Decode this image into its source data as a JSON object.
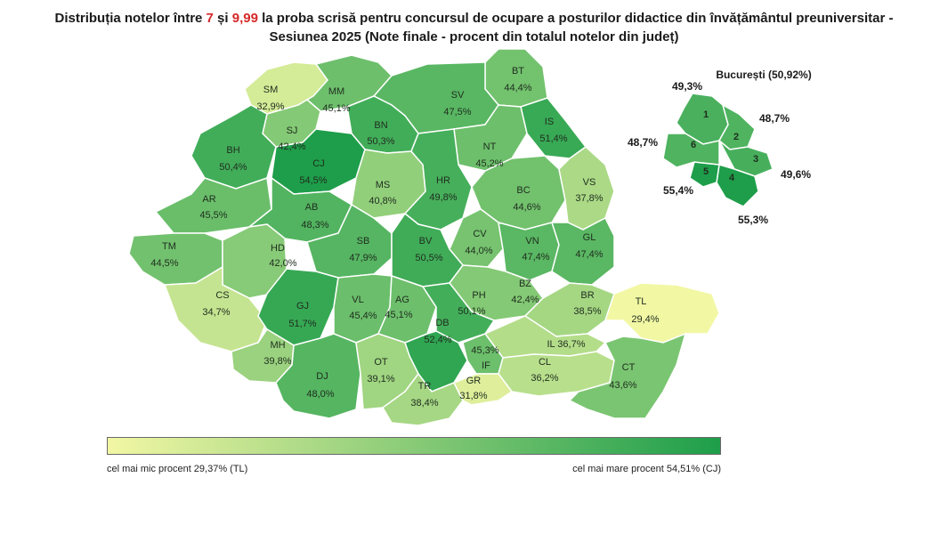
{
  "title": {
    "part1": "Distribuția notelor între ",
    "n1": "7",
    "part2": " și ",
    "n2": "9,99",
    "part3": " la proba scrisă pentru concursul de ocupare a posturilor didactice din învățământul preuniversitar -",
    "line2": "Sesiunea 2025 (Note finale - procent din totalul notelor din județ)"
  },
  "colors": {
    "low": "#f2f7a4",
    "high": "#1e9e4a",
    "border": "#ffffff",
    "title_accent": "#d62828"
  },
  "counties": [
    {
      "code": "SM",
      "value": "32,9%",
      "pct": 32.9
    },
    {
      "code": "MM",
      "value": "45,1%",
      "pct": 45.1
    },
    {
      "code": "BT",
      "value": "44,4%",
      "pct": 44.4
    },
    {
      "code": "SV",
      "value": "47,5%",
      "pct": 47.5
    },
    {
      "code": "IS",
      "value": "51,4%",
      "pct": 51.4
    },
    {
      "code": "BN",
      "value": "50,3%",
      "pct": 50.3
    },
    {
      "code": "SJ",
      "value": "42,4%",
      "pct": 42.4
    },
    {
      "code": "BH",
      "value": "50,4%",
      "pct": 50.4
    },
    {
      "code": "CJ",
      "value": "54,5%",
      "pct": 54.5
    },
    {
      "code": "NT",
      "value": "45,2%",
      "pct": 45.2
    },
    {
      "code": "MS",
      "value": "40,8%",
      "pct": 40.8
    },
    {
      "code": "HR",
      "value": "49,8%",
      "pct": 49.8
    },
    {
      "code": "BC",
      "value": "44,6%",
      "pct": 44.6
    },
    {
      "code": "VS",
      "value": "37,8%",
      "pct": 37.8
    },
    {
      "code": "AR",
      "value": "45,5%",
      "pct": 45.5
    },
    {
      "code": "AB",
      "value": "48,3%",
      "pct": 48.3
    },
    {
      "code": "CV",
      "value": "44,0%",
      "pct": 44.0
    },
    {
      "code": "TM",
      "value": "44,5%",
      "pct": 44.5
    },
    {
      "code": "HD",
      "value": "42,0%",
      "pct": 42.0
    },
    {
      "code": "SB",
      "value": "47,9%",
      "pct": 47.9
    },
    {
      "code": "BV",
      "value": "50,5%",
      "pct": 50.5
    },
    {
      "code": "VN",
      "value": "47,4%",
      "pct": 47.4
    },
    {
      "code": "GL",
      "value": "47,4%",
      "pct": 47.4
    },
    {
      "code": "BZ",
      "value": "42,4%",
      "pct": 42.4
    },
    {
      "code": "CS",
      "value": "34,7%",
      "pct": 34.7
    },
    {
      "code": "GJ",
      "value": "51,7%",
      "pct": 51.7
    },
    {
      "code": "VL",
      "value": "45,4%",
      "pct": 45.4
    },
    {
      "code": "AG",
      "value": "45,1%",
      "pct": 45.1
    },
    {
      "code": "PH",
      "value": "50,1%",
      "pct": 50.1
    },
    {
      "code": "BR",
      "value": "38,5%",
      "pct": 38.5
    },
    {
      "code": "TL",
      "value": "29,4%",
      "pct": 29.4
    },
    {
      "code": "DB",
      "value": "52,4%",
      "pct": 52.4
    },
    {
      "code": "MH",
      "value": "39,8%",
      "pct": 39.8
    },
    {
      "code": "IL",
      "value": "36,7%",
      "pct": 36.7
    },
    {
      "code": "IF",
      "value": "45,3%",
      "pct": 45.3
    },
    {
      "code": "DJ",
      "value": "48,0%",
      "pct": 48.0
    },
    {
      "code": "OT",
      "value": "39,1%",
      "pct": 39.1
    },
    {
      "code": "CL",
      "value": "36,2%",
      "pct": 36.2
    },
    {
      "code": "CT",
      "value": "43,6%",
      "pct": 43.6
    },
    {
      "code": "TR",
      "value": "38,4%",
      "pct": 38.4
    },
    {
      "code": "GR",
      "value": "31,8%",
      "pct": 31.8
    }
  ],
  "bucharest": {
    "title": "București (50,92%)",
    "sectors": [
      {
        "code": "1",
        "value": "49,3%",
        "pct": 49.3
      },
      {
        "code": "2",
        "value": "48,7%",
        "pct": 48.7
      },
      {
        "code": "3",
        "value": "49,6%",
        "pct": 49.6
      },
      {
        "code": "4",
        "value": "55,3%",
        "pct": 55.3
      },
      {
        "code": "5",
        "value": "55,4%",
        "pct": 55.4
      },
      {
        "code": "6",
        "value": "48,7%",
        "pct": 48.7
      }
    ]
  },
  "legend": {
    "min_label": "cel mai mic procent 29,37% (TL)",
    "max_label": "cel mai mare procent 54,51% (CJ)",
    "min_pct": 29.37,
    "max_pct": 54.51
  }
}
